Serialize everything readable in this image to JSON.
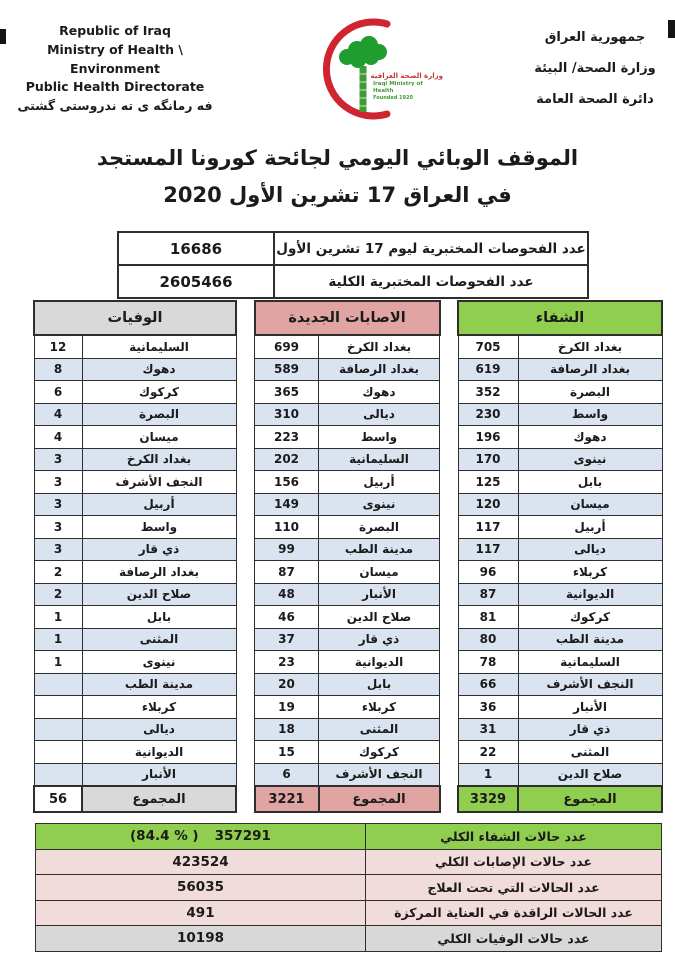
{
  "header": {
    "english": {
      "line1": "Republic of Iraq",
      "line2": "Ministry of Health \\ Environment",
      "line3": "Public Health Directorate",
      "kurdish": "فه رمانگه ى ته ندروستى گشتى"
    },
    "arabic": {
      "line1": "جمهورية العراق",
      "line2": "وزارة الصحة/ البيئة",
      "line3": "دائرة الصحة العامة"
    },
    "logo": {
      "arabic": "وزارة الصحة العراقية",
      "english": "Iraqi Ministry of Health",
      "founded": "Founded 1920"
    }
  },
  "title": {
    "line1": "الموقف الوبائي اليومي لجائحة كورونا المستجد",
    "line2": "في العراق  17  تشرين الأول 2020"
  },
  "tests": {
    "rows": [
      {
        "label": "عدد الفحوصات المختبرية  ليوم 17 تشرين الأول",
        "value": "16686"
      },
      {
        "label": "عدد الفحوصات المختبرية الكلية",
        "value": "2605466"
      }
    ]
  },
  "tables": {
    "deaths": {
      "title": "الوفيات",
      "header_color": "#D9D9D9",
      "total_value_bg": "#FFFFFF",
      "total_label": "المجموع",
      "total": "56",
      "rows": [
        {
          "name": "السليمانية",
          "value": "12"
        },
        {
          "name": "دهوك",
          "value": "8"
        },
        {
          "name": "كركوك",
          "value": "6"
        },
        {
          "name": "البصرة",
          "value": "4"
        },
        {
          "name": "ميسان",
          "value": "4"
        },
        {
          "name": "بغداد الكرخ",
          "value": "3"
        },
        {
          "name": "النجف الأشرف",
          "value": "3"
        },
        {
          "name": "أربيل",
          "value": "3"
        },
        {
          "name": "واسط",
          "value": "3"
        },
        {
          "name": "ذي قار",
          "value": "3"
        },
        {
          "name": "بغداد الرصافة",
          "value": "2"
        },
        {
          "name": "صلاح الدين",
          "value": "2"
        },
        {
          "name": "بابل",
          "value": "1"
        },
        {
          "name": "المثنى",
          "value": "1"
        },
        {
          "name": "نينوى",
          "value": "1"
        },
        {
          "name": "مدينة الطب",
          "value": ""
        },
        {
          "name": "كربلاء",
          "value": ""
        },
        {
          "name": "ديالى",
          "value": ""
        },
        {
          "name": "الديوانية",
          "value": ""
        },
        {
          "name": "الأنبار",
          "value": ""
        }
      ]
    },
    "infections": {
      "title": "الاصابات الجديدة",
      "header_color": "#E0A5A2",
      "total_value_bg": "#E0A5A2",
      "total_label": "المجموع",
      "total": "3221",
      "rows": [
        {
          "name": "بغداد الكرخ",
          "value": "699"
        },
        {
          "name": "بغداد الرصافة",
          "value": "589"
        },
        {
          "name": "دهوك",
          "value": "365"
        },
        {
          "name": "ديالى",
          "value": "310"
        },
        {
          "name": "واسط",
          "value": "223"
        },
        {
          "name": "السليمانية",
          "value": "202"
        },
        {
          "name": "أربيل",
          "value": "156"
        },
        {
          "name": "نينوى",
          "value": "149"
        },
        {
          "name": "البصرة",
          "value": "110"
        },
        {
          "name": "مدينة الطب",
          "value": "99"
        },
        {
          "name": "ميسان",
          "value": "87"
        },
        {
          "name": "الأنبار",
          "value": "48"
        },
        {
          "name": "صلاح الدين",
          "value": "46"
        },
        {
          "name": "ذي قار",
          "value": "37"
        },
        {
          "name": "الديوانية",
          "value": "23"
        },
        {
          "name": "بابل",
          "value": "20"
        },
        {
          "name": "كربلاء",
          "value": "19"
        },
        {
          "name": "المثنى",
          "value": "18"
        },
        {
          "name": "كركوك",
          "value": "15"
        },
        {
          "name": "النجف الأشرف",
          "value": "6"
        }
      ]
    },
    "recoveries": {
      "title": "الشفاء",
      "header_color": "#8FCE4E",
      "total_value_bg": "#8FCE4E",
      "total_label": "المجموع",
      "total": "3329",
      "rows": [
        {
          "name": "بغداد الكرخ",
          "value": "705"
        },
        {
          "name": "بغداد الرصافة",
          "value": "619"
        },
        {
          "name": "البصرة",
          "value": "352"
        },
        {
          "name": "واسط",
          "value": "230"
        },
        {
          "name": "دهوك",
          "value": "196"
        },
        {
          "name": "نينوى",
          "value": "170"
        },
        {
          "name": "بابل",
          "value": "125"
        },
        {
          "name": "ميسان",
          "value": "120"
        },
        {
          "name": "أربيل",
          "value": "117"
        },
        {
          "name": "ديالى",
          "value": "117"
        },
        {
          "name": "كربلاء",
          "value": "96"
        },
        {
          "name": "الديوانية",
          "value": "87"
        },
        {
          "name": "كركوك",
          "value": "81"
        },
        {
          "name": "مدينة الطب",
          "value": "80"
        },
        {
          "name": "السليمانية",
          "value": "78"
        },
        {
          "name": "النجف الأشرف",
          "value": "66"
        },
        {
          "name": "الأنبار",
          "value": "36"
        },
        {
          "name": "ذي قار",
          "value": "31"
        },
        {
          "name": "المثنى",
          "value": "22"
        },
        {
          "name": "صلاح الدين",
          "value": "1"
        }
      ]
    }
  },
  "summary": {
    "rows": [
      {
        "label": "عدد حالات الشفاء الكلي",
        "value": "357291",
        "extra": "(84.4 % )",
        "color": "green"
      },
      {
        "label": "عدد حالات الإصابات الكلي",
        "value": "423524",
        "color": "pink"
      },
      {
        "label": "عدد الحالات التي تحت العلاج",
        "value": "56035",
        "color": "pink"
      },
      {
        "label": "عدد الحالات الراقدة في العناية المركزة",
        "value": "491",
        "color": "pink"
      },
      {
        "label": "عدد حالات الوفيات الكلي",
        "value": "10198",
        "color": "gray"
      }
    ]
  },
  "colors": {
    "green": "#8FCE4E",
    "pink": "#F2DCDB",
    "gray": "#D8D8D8",
    "stripe": "#DAE3F0",
    "crescent_red": "#CE2530",
    "palm_green": "#1F9D2F"
  }
}
